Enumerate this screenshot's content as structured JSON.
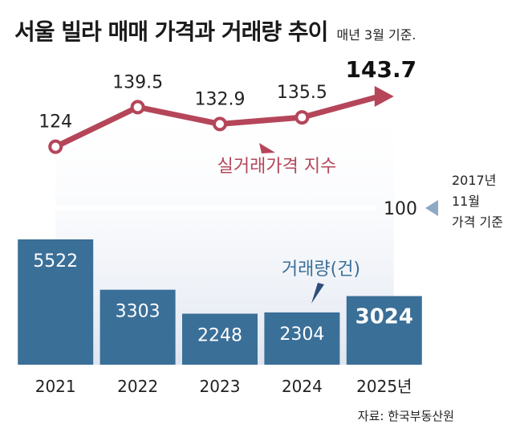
{
  "title": "서울 빌라 매매 가격과 거래량 추이",
  "subtitle": "매년 3월 기준.",
  "source": "자료: 한국부동산원",
  "chart_data": {
    "type": "bar+line",
    "categories": [
      "2021",
      "2022",
      "2023",
      "2024",
      "2025년"
    ],
    "series": [
      {
        "name": "실거래가격 지수",
        "type": "line",
        "values": [
          124,
          139.5,
          132.9,
          135.5,
          143.7
        ],
        "value_labels": [
          "124",
          "139.5",
          "132.9",
          "135.5",
          "143.7"
        ],
        "color": "#b5465a"
      },
      {
        "name": "거래량(건)",
        "type": "bar",
        "values": [
          5522,
          3303,
          2248,
          2304,
          3024
        ],
        "color": "#3a6f98"
      }
    ],
    "reference_line": {
      "value": 100,
      "label": "100",
      "note": [
        "2017년",
        "11월",
        "가격 기준"
      ]
    },
    "highlight_color": "#111111",
    "area_fill": "#e6ebf4"
  }
}
